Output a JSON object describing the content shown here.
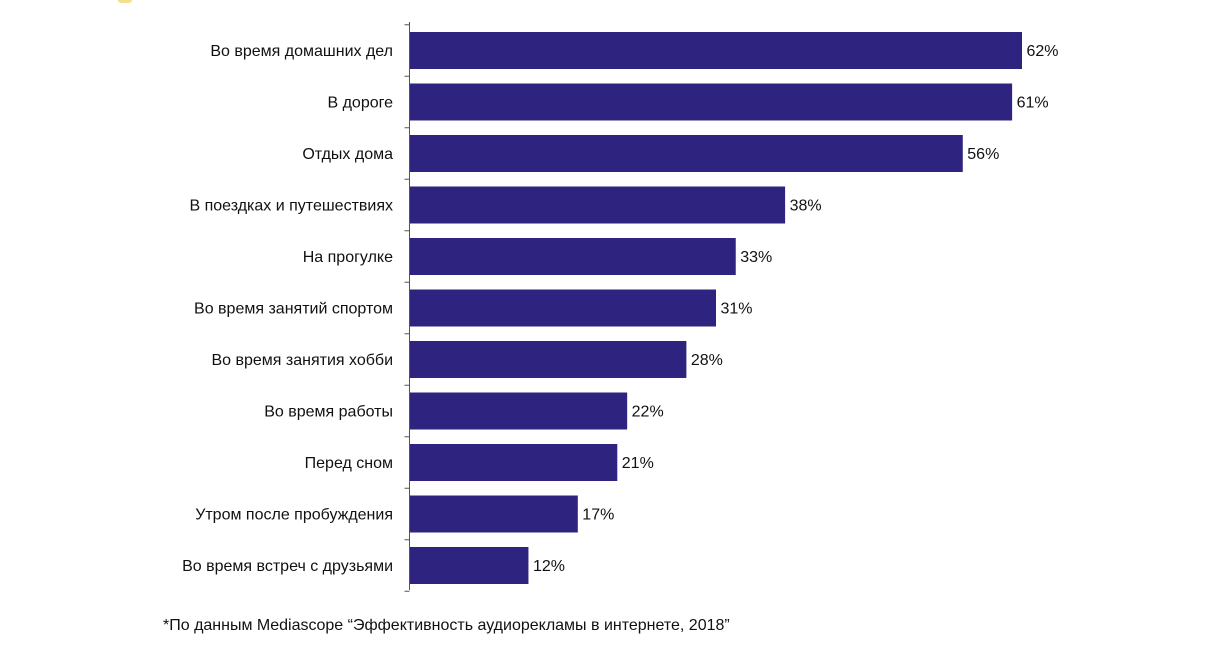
{
  "colors": {
    "bar": "#2e2480",
    "axis": "#555555",
    "text": "#111111",
    "corner_mark": "#f3e08a"
  },
  "footnote": "*По данным Mediascope “Эффективность аудиорекламы в интернете, 2018”",
  "chart_data": {
    "type": "bar",
    "orientation": "horizontal",
    "categories": [
      "Во время домашних дел",
      "В дороге",
      "Отдых дома",
      "В поездках и путешествиях",
      "На прогулке",
      "Во время занятий спортом",
      "Во время занятия хобби",
      "Во время работы",
      "Перед сном",
      "Утром после пробуждения",
      "Во время встреч с друзьями"
    ],
    "values": [
      62,
      61,
      56,
      38,
      33,
      31,
      28,
      22,
      21,
      17,
      12
    ],
    "value_labels": [
      "62%",
      "61%",
      "56%",
      "38%",
      "33%",
      "31%",
      "28%",
      "22%",
      "21%",
      "17%",
      "12%"
    ],
    "unit": "%",
    "xlim": [
      0,
      62
    ],
    "title": "",
    "xlabel": "",
    "ylabel": "",
    "grid": false,
    "legend": "none"
  }
}
